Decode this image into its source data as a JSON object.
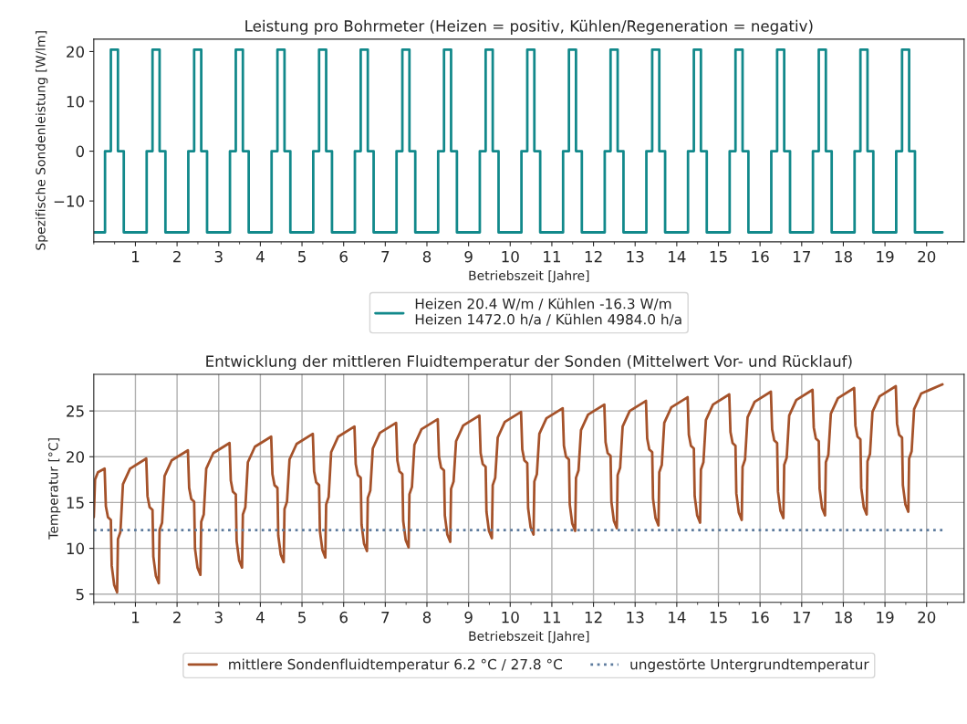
{
  "chart_data": [
    {
      "type": "step",
      "title": "Leistung pro Bohrmeter (Heizen = positiv, Kühlen/Regeneration = negativ)",
      "xlabel": "Betriebszeit [Jahre]",
      "ylabel": "Spezifische Sondenleistung [W/lm]",
      "xlim": [
        0,
        20.9
      ],
      "xticks": [
        1,
        2,
        3,
        4,
        5,
        6,
        7,
        8,
        9,
        10,
        11,
        12,
        13,
        14,
        15,
        16,
        17,
        18,
        19,
        20
      ],
      "ylim": [
        -18.2,
        22.5
      ],
      "yticks": [
        {
          "value": -10,
          "label": "−10"
        },
        0,
        10,
        20
      ],
      "grid": false,
      "legend": "bottom",
      "series": [
        {
          "name": "Heizen 20.4 W/m / Kühlen -16.3 W/m\nHeizen 1472.0 h/a / Kühlen 4984.0 h/a",
          "color": "#12898b",
          "x": [
            0,
            0.27,
            0.41,
            0.58,
            0.72,
            1.27,
            1.41,
            1.58,
            1.72,
            2.27,
            2.41,
            2.58,
            2.72,
            3.27,
            3.41,
            3.58,
            3.72,
            4.27,
            4.41,
            4.58,
            4.72,
            5.27,
            5.41,
            5.58,
            5.72,
            6.27,
            6.41,
            6.58,
            6.72,
            7.27,
            7.41,
            7.58,
            7.72,
            8.27,
            8.41,
            8.58,
            8.72,
            9.27,
            9.41,
            9.58,
            9.72,
            10.27,
            10.41,
            10.58,
            10.72,
            11.27,
            11.41,
            11.58,
            11.72,
            12.27,
            12.41,
            12.58,
            12.72,
            13.27,
            13.41,
            13.58,
            13.72,
            14.27,
            14.41,
            14.58,
            14.72,
            15.27,
            15.41,
            15.58,
            15.72,
            16.27,
            16.41,
            16.58,
            16.72,
            17.27,
            17.41,
            17.58,
            17.72,
            18.27,
            18.41,
            18.58,
            18.72,
            19.27,
            19.41,
            19.58,
            19.72,
            20.38
          ],
          "values": [
            -16.3,
            0,
            20.4,
            0,
            -16.3,
            0,
            20.4,
            0,
            -16.3,
            0,
            20.4,
            0,
            -16.3,
            0,
            20.4,
            0,
            -16.3,
            0,
            20.4,
            0,
            -16.3,
            0,
            20.4,
            0,
            -16.3,
            0,
            20.4,
            0,
            -16.3,
            0,
            20.4,
            0,
            -16.3,
            0,
            20.4,
            0,
            -16.3,
            0,
            20.4,
            0,
            -16.3,
            0,
            20.4,
            0,
            -16.3,
            0,
            20.4,
            0,
            -16.3,
            0,
            20.4,
            0,
            -16.3,
            0,
            20.4,
            0,
            -16.3,
            0,
            20.4,
            0,
            -16.3,
            0,
            20.4,
            0,
            -16.3,
            0,
            20.4,
            0,
            -16.3,
            0,
            20.4,
            0,
            -16.3,
            0,
            20.4,
            0,
            -16.3,
            0,
            20.4,
            0,
            -16.3,
            -16.3
          ]
        }
      ]
    },
    {
      "type": "line",
      "title": "Entwicklung der mittleren Fluidtemperatur der Sonden (Mittelwert Vor- und Rücklauf)",
      "xlabel": "Betriebszeit [Jahre]",
      "ylabel": "Temperatur [°C]",
      "xlim": [
        0,
        20.9
      ],
      "xticks": [
        1,
        2,
        3,
        4,
        5,
        6,
        7,
        8,
        9,
        10,
        11,
        12,
        13,
        14,
        15,
        16,
        17,
        18,
        19,
        20
      ],
      "ylim": [
        4.1,
        29
      ],
      "yticks": [
        5,
        10,
        15,
        20,
        25
      ],
      "grid": true,
      "legend": "bottom",
      "series": [
        {
          "name": "mittlere Sondenfluidtemperatur 6.2 °C / 27.8 °C",
          "color": "#a5522a",
          "line_style": "solid",
          "x": [
            0,
            0.03,
            0.1,
            0.26,
            0.29,
            0.34,
            0.41,
            0.43,
            0.49,
            0.56,
            0.58,
            0.64,
            0.7,
            0.87,
            1.26,
            1.29,
            1.34,
            1.41,
            1.43,
            1.49,
            1.56,
            1.58,
            1.64,
            1.7,
            1.87,
            2.26,
            2.29,
            2.34,
            2.41,
            2.43,
            2.49,
            2.56,
            2.58,
            2.64,
            2.7,
            2.87,
            3.26,
            3.29,
            3.34,
            3.41,
            3.43,
            3.49,
            3.56,
            3.58,
            3.64,
            3.7,
            3.87,
            4.26,
            4.29,
            4.34,
            4.41,
            4.43,
            4.49,
            4.56,
            4.58,
            4.64,
            4.7,
            4.87,
            5.26,
            5.29,
            5.34,
            5.41,
            5.43,
            5.49,
            5.56,
            5.58,
            5.64,
            5.7,
            5.87,
            6.26,
            6.29,
            6.34,
            6.41,
            6.43,
            6.49,
            6.56,
            6.58,
            6.64,
            6.7,
            6.87,
            7.26,
            7.29,
            7.34,
            7.41,
            7.43,
            7.49,
            7.56,
            7.58,
            7.64,
            7.7,
            7.87,
            8.26,
            8.29,
            8.34,
            8.41,
            8.43,
            8.49,
            8.56,
            8.58,
            8.64,
            8.7,
            8.87,
            9.26,
            9.29,
            9.34,
            9.41,
            9.43,
            9.49,
            9.56,
            9.58,
            9.64,
            9.7,
            9.87,
            10.26,
            10.29,
            10.34,
            10.41,
            10.43,
            10.49,
            10.56,
            10.58,
            10.64,
            10.7,
            10.87,
            11.26,
            11.29,
            11.34,
            11.41,
            11.43,
            11.49,
            11.56,
            11.58,
            11.64,
            11.7,
            11.87,
            12.26,
            12.29,
            12.34,
            12.41,
            12.43,
            12.49,
            12.56,
            12.58,
            12.64,
            12.7,
            12.87,
            13.26,
            13.29,
            13.34,
            13.41,
            13.43,
            13.49,
            13.56,
            13.58,
            13.64,
            13.7,
            13.87,
            14.26,
            14.29,
            14.34,
            14.41,
            14.43,
            14.49,
            14.56,
            14.58,
            14.64,
            14.7,
            14.87,
            15.26,
            15.29,
            15.34,
            15.41,
            15.43,
            15.49,
            15.56,
            15.58,
            15.64,
            15.7,
            15.87,
            16.26,
            16.29,
            16.34,
            16.41,
            16.43,
            16.49,
            16.56,
            16.58,
            16.64,
            16.7,
            16.87,
            17.26,
            17.29,
            17.34,
            17.41,
            17.43,
            17.49,
            17.56,
            17.58,
            17.64,
            17.7,
            17.87,
            18.26,
            18.29,
            18.34,
            18.41,
            18.43,
            18.49,
            18.56,
            18.58,
            18.64,
            18.7,
            18.87,
            19.26,
            19.29,
            19.34,
            19.41,
            19.43,
            19.49,
            19.56,
            19.58,
            19.64,
            19.7,
            19.87,
            20.38
          ],
          "values": [
            13.4,
            17.5,
            18.3,
            18.7,
            14.6,
            13.4,
            13.1,
            8.1,
            6.0,
            5.2,
            11.0,
            11.8,
            17.0,
            18.7,
            19.8,
            15.7,
            14.5,
            14.2,
            9.1,
            7.0,
            6.2,
            12.0,
            12.8,
            17.9,
            19.6,
            20.7,
            16.6,
            15.4,
            15.1,
            10.0,
            7.9,
            7.1,
            12.9,
            13.7,
            18.7,
            20.4,
            21.5,
            17.4,
            16.2,
            15.9,
            10.8,
            8.7,
            7.9,
            13.7,
            14.5,
            19.4,
            21.1,
            22.2,
            18.1,
            16.9,
            16.6,
            11.4,
            9.3,
            8.5,
            14.3,
            15.1,
            19.7,
            21.4,
            22.5,
            18.4,
            17.2,
            16.9,
            11.9,
            9.8,
            9.0,
            14.8,
            15.6,
            20.5,
            22.2,
            23.3,
            19.2,
            18.0,
            17.7,
            12.6,
            10.5,
            9.7,
            15.5,
            16.3,
            20.9,
            22.6,
            23.7,
            19.6,
            18.4,
            18.1,
            13.0,
            10.9,
            10.1,
            15.9,
            16.7,
            21.3,
            23.0,
            24.1,
            20.0,
            18.8,
            18.5,
            13.6,
            11.5,
            10.7,
            16.5,
            17.3,
            21.7,
            23.4,
            24.5,
            20.4,
            19.2,
            18.9,
            14.0,
            11.9,
            11.1,
            16.9,
            17.7,
            22.1,
            23.8,
            24.9,
            20.8,
            19.6,
            19.3,
            14.4,
            12.3,
            11.5,
            17.3,
            18.1,
            22.5,
            24.2,
            25.3,
            21.2,
            20.0,
            19.7,
            14.8,
            12.7,
            11.9,
            17.7,
            18.5,
            22.9,
            24.6,
            25.7,
            21.6,
            20.4,
            20.1,
            15.1,
            13.0,
            12.2,
            18.0,
            18.8,
            23.3,
            25.0,
            26.1,
            22.0,
            20.8,
            20.5,
            15.4,
            13.3,
            12.5,
            18.3,
            19.1,
            23.7,
            25.4,
            26.5,
            22.4,
            21.2,
            20.9,
            15.7,
            13.6,
            12.8,
            18.6,
            19.4,
            24.0,
            25.7,
            26.8,
            22.7,
            21.5,
            21.2,
            16.0,
            13.9,
            13.1,
            18.9,
            19.7,
            24.3,
            26.0,
            27.1,
            23.0,
            21.8,
            21.5,
            16.2,
            14.1,
            13.3,
            19.1,
            19.9,
            24.5,
            26.2,
            27.3,
            23.2,
            22.0,
            21.7,
            16.5,
            14.4,
            13.6,
            19.4,
            20.2,
            24.7,
            26.4,
            27.5,
            23.4,
            22.2,
            21.9,
            16.6,
            14.5,
            13.7,
            19.5,
            20.3,
            24.9,
            26.6,
            27.7,
            23.6,
            22.4,
            22.1,
            16.9,
            14.8,
            14.0,
            19.8,
            20.6,
            25.2,
            26.9,
            27.9
          ]
        },
        {
          "name": "ungestörte Untergrundtemperatur",
          "color": "#5d7b9d",
          "line_style": "dotted",
          "x": [
            0,
            20.38
          ],
          "values": [
            12,
            12
          ]
        }
      ]
    }
  ]
}
